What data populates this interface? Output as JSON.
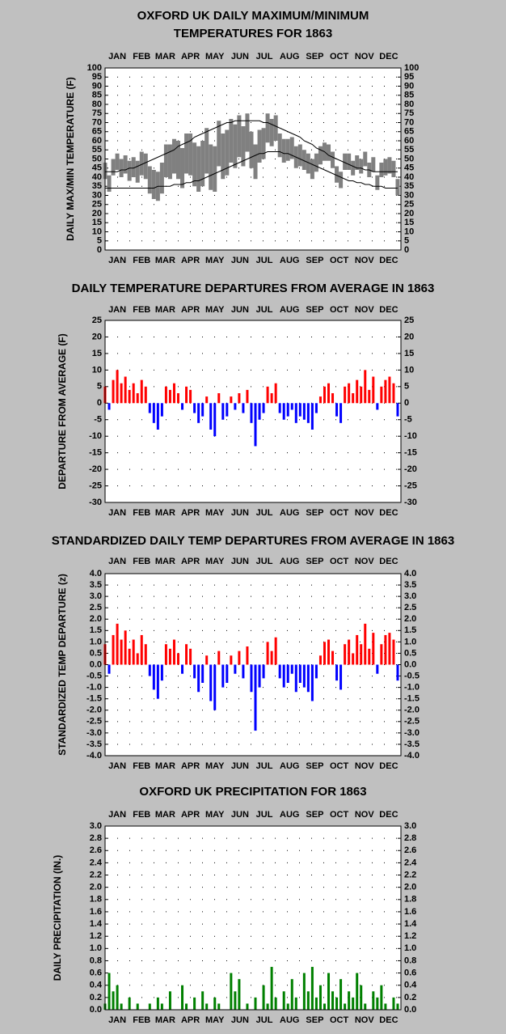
{
  "chart_data": [
    {
      "type": "range",
      "title": [
        "OXFORD UK DAILY MAXIMUM/MINIMUM",
        "TEMPERATURES FOR 1863"
      ],
      "y_label": "DAILY MAX/MIN TEMPERATURE (F)",
      "xlim": [
        1,
        365
      ],
      "xticks": [
        {
          "value": 16,
          "label": "JAN"
        },
        {
          "value": 46,
          "label": "FEB"
        },
        {
          "value": 75,
          "label": "MAR"
        },
        {
          "value": 106,
          "label": "APR"
        },
        {
          "value": 136,
          "label": "MAY"
        },
        {
          "value": 167,
          "label": "JUN"
        },
        {
          "value": 197,
          "label": "JUL"
        },
        {
          "value": 228,
          "label": "AUG"
        },
        {
          "value": 259,
          "label": "SEP"
        },
        {
          "value": 289,
          "label": "OCT"
        },
        {
          "value": 320,
          "label": "NOV"
        },
        {
          "value": 350,
          "label": "DEC"
        }
      ],
      "ylim": [
        0,
        100
      ],
      "yticks": [
        0,
        5,
        10,
        15,
        20,
        25,
        30,
        35,
        40,
        45,
        50,
        55,
        60,
        65,
        70,
        75,
        80,
        85,
        90,
        95,
        100
      ],
      "grid": true,
      "x": [
        1,
        6,
        11,
        16,
        21,
        26,
        31,
        36,
        41,
        46,
        51,
        56,
        61,
        66,
        71,
        76,
        81,
        86,
        91,
        96,
        101,
        106,
        111,
        116,
        121,
        126,
        131,
        136,
        141,
        146,
        151,
        156,
        161,
        166,
        171,
        176,
        181,
        186,
        191,
        196,
        201,
        206,
        211,
        216,
        221,
        226,
        231,
        236,
        241,
        246,
        251,
        256,
        261,
        266,
        271,
        276,
        281,
        286,
        291,
        296,
        301,
        306,
        311,
        316,
        321,
        326,
        331,
        336,
        341,
        346,
        351,
        356,
        361
      ],
      "range": {
        "color": "#808080",
        "high": [
          48,
          41,
          50,
          53,
          50,
          52,
          49,
          51,
          49,
          54,
          53,
          46,
          44,
          43,
          48,
          58,
          58,
          61,
          60,
          56,
          64,
          64,
          59,
          57,
          60,
          67,
          58,
          57,
          71,
          64,
          66,
          72,
          69,
          74,
          68,
          75,
          65,
          58,
          66,
          67,
          75,
          72,
          74,
          64,
          61,
          61,
          62,
          57,
          58,
          55,
          53,
          50,
          53,
          57,
          59,
          58,
          54,
          46,
          43,
          53,
          53,
          49,
          52,
          50,
          54,
          48,
          51,
          41,
          48,
          50,
          51,
          49,
          39
        ],
        "low": [
          39,
          32,
          41,
          44,
          40,
          42,
          38,
          40,
          37,
          41,
          39,
          31,
          28,
          27,
          31,
          40,
          39,
          42,
          39,
          34,
          42,
          41,
          35,
          32,
          35,
          42,
          33,
          32,
          46,
          39,
          41,
          48,
          45,
          51,
          46,
          54,
          45,
          39,
          48,
          50,
          59,
          57,
          60,
          51,
          48,
          49,
          50,
          45,
          46,
          44,
          42,
          39,
          43,
          47,
          49,
          49,
          45,
          37,
          34,
          44,
          44,
          41,
          44,
          42,
          46,
          40,
          43,
          33,
          40,
          41,
          42,
          40,
          30
        ]
      },
      "lines": [
        {
          "color": "#000000",
          "values": [
            43,
            43,
            43,
            43,
            44,
            44,
            45,
            45,
            46,
            47,
            48,
            49,
            50,
            51,
            52,
            53,
            54,
            55,
            57,
            58,
            59,
            60,
            62,
            63,
            64,
            65,
            66,
            67,
            68,
            69,
            70,
            70,
            71,
            71,
            71,
            71,
            71,
            71,
            71,
            70,
            70,
            69,
            68,
            67,
            66,
            65,
            64,
            63,
            62,
            60,
            59,
            58,
            56,
            55,
            54,
            52,
            51,
            50,
            49,
            48,
            47,
            46,
            45,
            45,
            44,
            44,
            43,
            43,
            43,
            43,
            43,
            43,
            43
          ]
        },
        {
          "color": "#000000",
          "values": [
            34,
            34,
            34,
            34,
            34,
            34,
            34,
            34,
            34,
            34,
            34,
            34,
            34,
            35,
            35,
            35,
            35,
            36,
            36,
            36,
            37,
            37,
            38,
            38,
            39,
            40,
            41,
            42,
            43,
            44,
            45,
            46,
            47,
            48,
            49,
            50,
            51,
            52,
            53,
            53,
            54,
            54,
            54,
            54,
            53,
            53,
            52,
            51,
            50,
            49,
            48,
            47,
            46,
            45,
            44,
            43,
            42,
            41,
            40,
            39,
            38,
            38,
            37,
            37,
            36,
            36,
            35,
            35,
            35,
            34,
            34,
            34,
            34
          ]
        }
      ]
    },
    {
      "type": "bar",
      "title": "DAILY TEMPERATURE DEPARTURES FROM AVERAGE IN 1863",
      "y_label": "DEPARTURE FROM AVERAGE (F)",
      "xlim": [
        1,
        365
      ],
      "xticks": [
        {
          "value": 16,
          "label": "JAN"
        },
        {
          "value": 46,
          "label": "FEB"
        },
        {
          "value": 75,
          "label": "MAR"
        },
        {
          "value": 106,
          "label": "APR"
        },
        {
          "value": 136,
          "label": "MAY"
        },
        {
          "value": 167,
          "label": "JUN"
        },
        {
          "value": 197,
          "label": "JUL"
        },
        {
          "value": 228,
          "label": "AUG"
        },
        {
          "value": 259,
          "label": "SEP"
        },
        {
          "value": 289,
          "label": "OCT"
        },
        {
          "value": 320,
          "label": "NOV"
        },
        {
          "value": 350,
          "label": "DEC"
        }
      ],
      "ylim": [
        -30,
        25
      ],
      "yticks": [
        -30,
        -25,
        -20,
        -15,
        -10,
        -5,
        0,
        5,
        10,
        15,
        20,
        25
      ],
      "grid": true,
      "pos_color": "#ff0000",
      "neg_color": "#0000ff",
      "x": [
        1,
        6,
        11,
        16,
        21,
        26,
        31,
        36,
        41,
        46,
        51,
        56,
        61,
        66,
        71,
        76,
        81,
        86,
        91,
        96,
        101,
        106,
        111,
        116,
        121,
        126,
        131,
        136,
        141,
        146,
        151,
        156,
        161,
        166,
        171,
        176,
        181,
        186,
        191,
        196,
        201,
        206,
        211,
        216,
        221,
        226,
        231,
        236,
        241,
        246,
        251,
        256,
        261,
        266,
        271,
        276,
        281,
        286,
        291,
        296,
        301,
        306,
        311,
        316,
        321,
        326,
        331,
        336,
        341,
        346,
        351,
        356,
        361
      ],
      "values": [
        5,
        -2,
        7,
        10,
        6,
        8,
        4,
        6,
        3,
        7,
        5,
        -3,
        -6,
        -8,
        -4,
        5,
        4,
        6,
        3,
        -2,
        5,
        4,
        -3,
        -6,
        -4,
        2,
        -8,
        -10,
        3,
        -5,
        -4,
        2,
        -2,
        3,
        -3,
        4,
        -6,
        -13,
        -5,
        -3,
        5,
        3,
        6,
        -3,
        -5,
        -4,
        -2,
        -6,
        -4,
        -5,
        -6,
        -8,
        -3,
        2,
        5,
        6,
        3,
        -4,
        -6,
        5,
        6,
        3,
        7,
        5,
        10,
        4,
        8,
        -2,
        5,
        7,
        8,
        6,
        -4
      ]
    },
    {
      "type": "bar",
      "title": "STANDARDIZED DAILY TEMP DEPARTURES FROM AVERAGE IN 1863",
      "y_label": "STANDARDIZED TEMP DEPARTURE (z)",
      "xlim": [
        1,
        365
      ],
      "xticks": [
        {
          "value": 16,
          "label": "JAN"
        },
        {
          "value": 46,
          "label": "FEB"
        },
        {
          "value": 75,
          "label": "MAR"
        },
        {
          "value": 106,
          "label": "APR"
        },
        {
          "value": 136,
          "label": "MAY"
        },
        {
          "value": 167,
          "label": "JUN"
        },
        {
          "value": 197,
          "label": "JUL"
        },
        {
          "value": 228,
          "label": "AUG"
        },
        {
          "value": 259,
          "label": "SEP"
        },
        {
          "value": 289,
          "label": "OCT"
        },
        {
          "value": 320,
          "label": "NOV"
        },
        {
          "value": 350,
          "label": "DEC"
        }
      ],
      "ylim": [
        -4,
        4
      ],
      "yticks": [
        {
          "value": -4,
          "label": "-4.0"
        },
        -3.5,
        {
          "value": -3,
          "label": "-3.0"
        },
        -2.5,
        {
          "value": -2,
          "label": "-2.0"
        },
        -1.5,
        {
          "value": -1,
          "label": "-1.0"
        },
        -0.5,
        {
          "value": 0,
          "label": "0.0"
        },
        0.5,
        {
          "value": 1,
          "label": "1.0"
        },
        1.5,
        {
          "value": 2,
          "label": "2.0"
        },
        2.5,
        {
          "value": 3,
          "label": "3.0"
        },
        3.5,
        {
          "value": 4,
          "label": "4.0"
        }
      ],
      "grid": true,
      "pos_color": "#ff0000",
      "neg_color": "#0000ff",
      "x": [
        1,
        6,
        11,
        16,
        21,
        26,
        31,
        36,
        41,
        46,
        51,
        56,
        61,
        66,
        71,
        76,
        81,
        86,
        91,
        96,
        101,
        106,
        111,
        116,
        121,
        126,
        131,
        136,
        141,
        146,
        151,
        156,
        161,
        166,
        171,
        176,
        181,
        186,
        191,
        196,
        201,
        206,
        211,
        216,
        221,
        226,
        231,
        236,
        241,
        246,
        251,
        256,
        261,
        266,
        271,
        276,
        281,
        286,
        291,
        296,
        301,
        306,
        311,
        316,
        321,
        326,
        331,
        336,
        341,
        346,
        351,
        356,
        361
      ],
      "values": [
        0.9,
        -0.4,
        1.3,
        1.8,
        1.1,
        1.5,
        0.7,
        1.1,
        0.5,
        1.3,
        0.9,
        -0.5,
        -1.1,
        -1.5,
        -0.7,
        0.9,
        0.7,
        1.1,
        0.5,
        -0.4,
        0.9,
        0.7,
        -0.6,
        -1.2,
        -0.8,
        0.4,
        -1.6,
        -2.0,
        0.6,
        -1.0,
        -0.8,
        0.4,
        -0.4,
        0.6,
        -0.6,
        0.8,
        -1.2,
        -2.9,
        -1.0,
        -0.6,
        1.0,
        0.6,
        1.2,
        -0.6,
        -1.0,
        -0.8,
        -0.4,
        -1.2,
        -0.8,
        -1.0,
        -1.2,
        -1.6,
        -0.6,
        0.4,
        1.0,
        1.1,
        0.6,
        -0.7,
        -1.1,
        0.9,
        1.1,
        0.5,
        1.3,
        0.9,
        1.8,
        0.7,
        1.4,
        -0.4,
        0.9,
        1.3,
        1.4,
        1.1,
        -0.7
      ]
    },
    {
      "type": "bar",
      "title": "OXFORD UK PRECIPITATION FOR 1863",
      "y_label": "DAILY PRECIPITATION (IN.)",
      "xlim": [
        1,
        365
      ],
      "xticks": [
        {
          "value": 16,
          "label": "JAN"
        },
        {
          "value": 46,
          "label": "FEB"
        },
        {
          "value": 75,
          "label": "MAR"
        },
        {
          "value": 106,
          "label": "APR"
        },
        {
          "value": 136,
          "label": "MAY"
        },
        {
          "value": 167,
          "label": "JUN"
        },
        {
          "value": 197,
          "label": "JUL"
        },
        {
          "value": 228,
          "label": "AUG"
        },
        {
          "value": 259,
          "label": "SEP"
        },
        {
          "value": 289,
          "label": "OCT"
        },
        {
          "value": 320,
          "label": "NOV"
        },
        {
          "value": 350,
          "label": "DEC"
        }
      ],
      "ylim": [
        0,
        3
      ],
      "yticks": [
        {
          "value": 0,
          "label": "0.0"
        },
        0.2,
        0.4,
        0.6,
        0.8,
        {
          "value": 1,
          "label": "1.0"
        },
        1.2,
        1.4,
        1.6,
        1.8,
        {
          "value": 2,
          "label": "2.0"
        },
        2.2,
        2.4,
        2.6,
        2.8,
        {
          "value": 3,
          "label": "3.0"
        }
      ],
      "grid": true,
      "pos_color": "#008000",
      "neg_color": "#008000",
      "x": [
        1,
        6,
        11,
        16,
        21,
        26,
        31,
        36,
        41,
        46,
        51,
        56,
        61,
        66,
        71,
        76,
        81,
        86,
        91,
        96,
        101,
        106,
        111,
        116,
        121,
        126,
        131,
        136,
        141,
        146,
        151,
        156,
        161,
        166,
        171,
        176,
        181,
        186,
        191,
        196,
        201,
        206,
        211,
        216,
        221,
        226,
        231,
        236,
        241,
        246,
        251,
        256,
        261,
        266,
        271,
        276,
        281,
        286,
        291,
        296,
        301,
        306,
        311,
        316,
        321,
        326,
        331,
        336,
        341,
        346,
        351,
        356,
        361
      ],
      "values": [
        0.1,
        0.6,
        0.3,
        0.4,
        0.1,
        0.0,
        0.2,
        0.0,
        0.1,
        0.0,
        0.0,
        0.1,
        0.0,
        0.2,
        0.1,
        0.0,
        0.3,
        0.0,
        0.0,
        0.4,
        0.1,
        0.0,
        0.2,
        0.0,
        0.3,
        0.1,
        0.0,
        0.2,
        0.1,
        0.0,
        0.0,
        0.6,
        0.3,
        0.5,
        0.0,
        0.1,
        0.0,
        0.2,
        0.0,
        0.4,
        0.1,
        0.7,
        0.2,
        0.0,
        0.3,
        0.1,
        0.5,
        0.2,
        0.0,
        0.6,
        0.3,
        0.7,
        0.2,
        0.4,
        0.1,
        0.6,
        0.3,
        0.2,
        0.5,
        0.1,
        0.3,
        0.2,
        0.6,
        0.4,
        0.1,
        0.0,
        0.3,
        0.2,
        0.4,
        0.1,
        0.0,
        0.2,
        0.1
      ]
    }
  ]
}
